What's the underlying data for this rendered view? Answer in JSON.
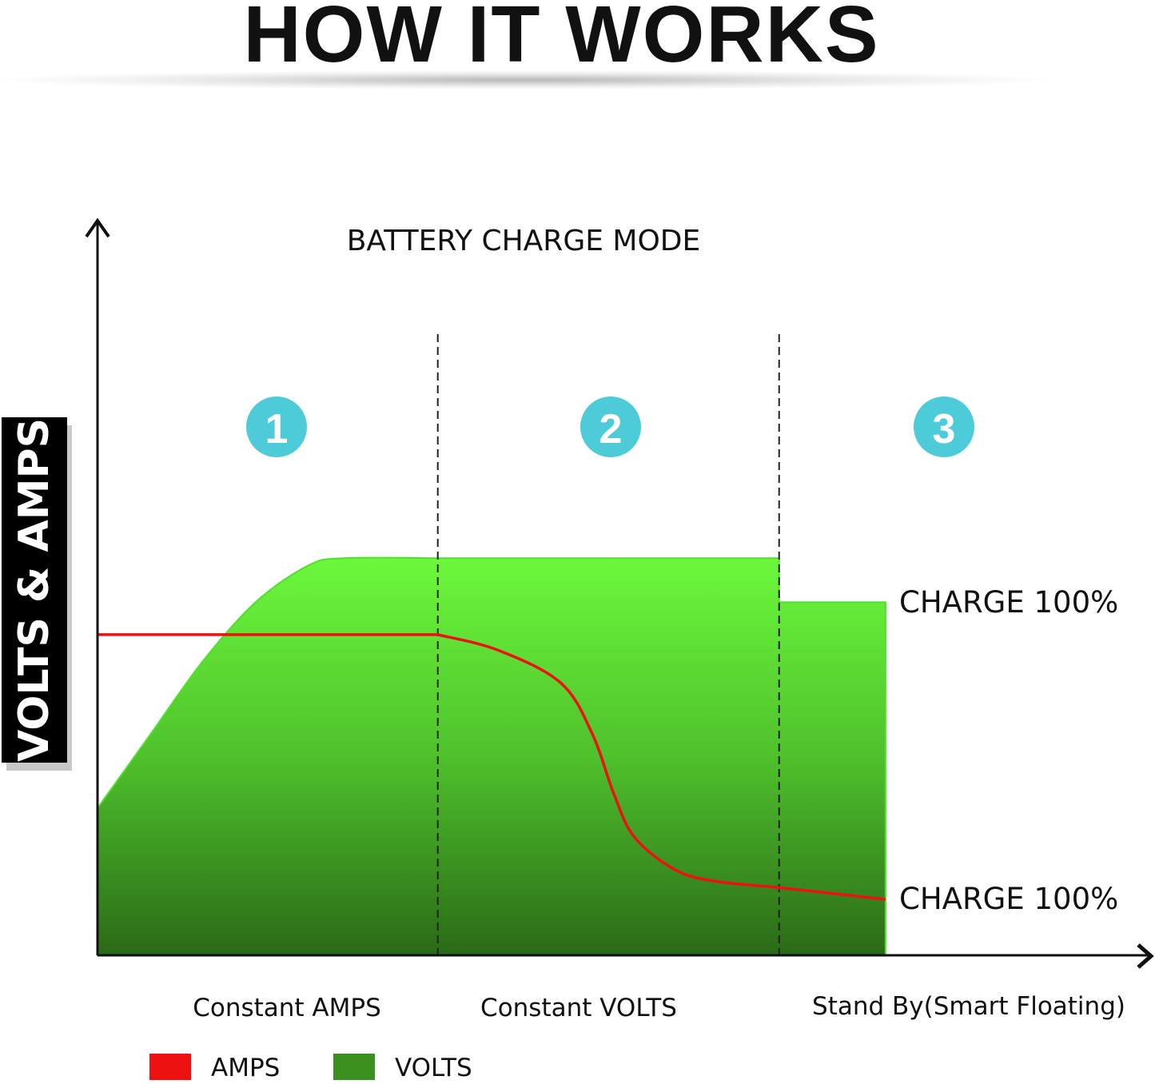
{
  "header": {
    "title": "HOW IT WORKS"
  },
  "chart_data": {
    "type": "area",
    "title": "BATTERY CHARGE MODE",
    "ylabel": "VOLTS & AMPS",
    "xlabel": "",
    "phases": [
      {
        "number": "1",
        "label": "Constant AMPS"
      },
      {
        "number": "2",
        "label": "Constant VOLTS"
      },
      {
        "number": "3",
        "label": "Stand By(Smart Floating)"
      }
    ],
    "annotations": {
      "volts_end": "CHARGE 100%",
      "amps_end": "CHARGE 100%"
    },
    "legend": [
      {
        "name": "AMPS",
        "color": "#ee1111"
      },
      {
        "name": "VOLTS",
        "color": "#3a8f1e"
      }
    ],
    "legend_placement": "bottom-left",
    "grid": false,
    "series": [
      {
        "name": "VOLTS",
        "type": "area",
        "color": "#5ee83a",
        "x": [
          0,
          5,
          10,
          15,
          20,
          23.4,
          32.3,
          64.7,
          64.7,
          74.8
        ],
        "y": [
          20,
          30,
          40,
          48,
          53,
          54,
          54,
          54,
          48,
          48
        ]
      },
      {
        "name": "AMPS",
        "type": "line",
        "color": "#ee1111",
        "x": [
          0,
          32.3,
          38,
          44,
          47,
          49,
          51,
          55,
          59,
          64.7,
          74.8
        ],
        "y": [
          43.6,
          43.6,
          41.5,
          37,
          30,
          22,
          16,
          11.5,
          10,
          9.2,
          7.6
        ]
      }
    ]
  }
}
